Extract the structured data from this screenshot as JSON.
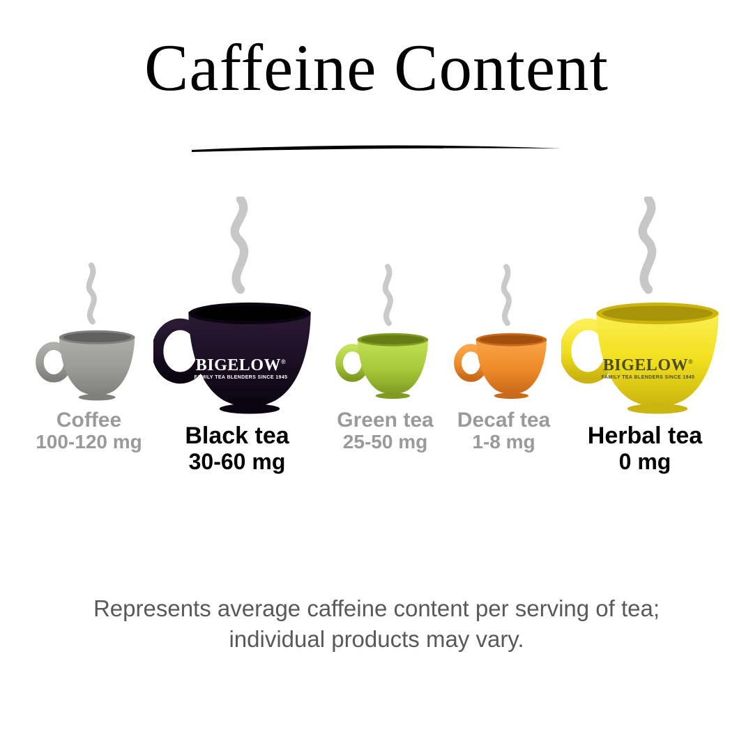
{
  "title": "Caffeine Content",
  "background_color": "#ffffff",
  "disclaimer": "Represents average caffeine content per serving of tea;\nindividual products may vary.",
  "disclaimer_color": "#595959",
  "disclaimer_fontsize": 33,
  "muted_text_color": "#9a9a9a",
  "bold_text_color": "#000000",
  "steam_color": "#bdbdbd",
  "brand": {
    "name": "BIGELOW",
    "reg_mark": "®",
    "tagline": "FAMILY TEA BLENDERS SINCE 1945"
  },
  "cups": [
    {
      "key": "coffee",
      "name": "Coffee",
      "amount": "100-120 mg",
      "emphasis": "muted",
      "size": "small",
      "cup_color": "#9a9a97",
      "cup_shadow": "#7f7f7c",
      "has_brand": false
    },
    {
      "key": "black",
      "name": "Black tea",
      "amount": "30-60 mg",
      "emphasis": "bold",
      "size": "large",
      "cup_color": "#1c0f24",
      "cup_shadow": "#0a0510",
      "brand_text_color": "#ffffff",
      "has_brand": true
    },
    {
      "key": "green",
      "name": "Green tea",
      "amount": "25-50 mg",
      "emphasis": "muted",
      "size": "small",
      "cup_color": "#a7c93a",
      "cup_shadow": "#7f9b21",
      "has_brand": false
    },
    {
      "key": "decaf",
      "name": "Decaf tea",
      "amount": "1-8 mg",
      "emphasis": "muted",
      "size": "small",
      "cup_color": "#ee8b29",
      "cup_shadow": "#c9691a",
      "has_brand": false
    },
    {
      "key": "herbal",
      "name": "Herbal tea",
      "amount": "0 mg",
      "emphasis": "bold",
      "size": "large",
      "cup_color": "#f2df1d",
      "cup_shadow": "#cbb40f",
      "brand_text_color": "#4a4d1e",
      "has_brand": true
    }
  ]
}
